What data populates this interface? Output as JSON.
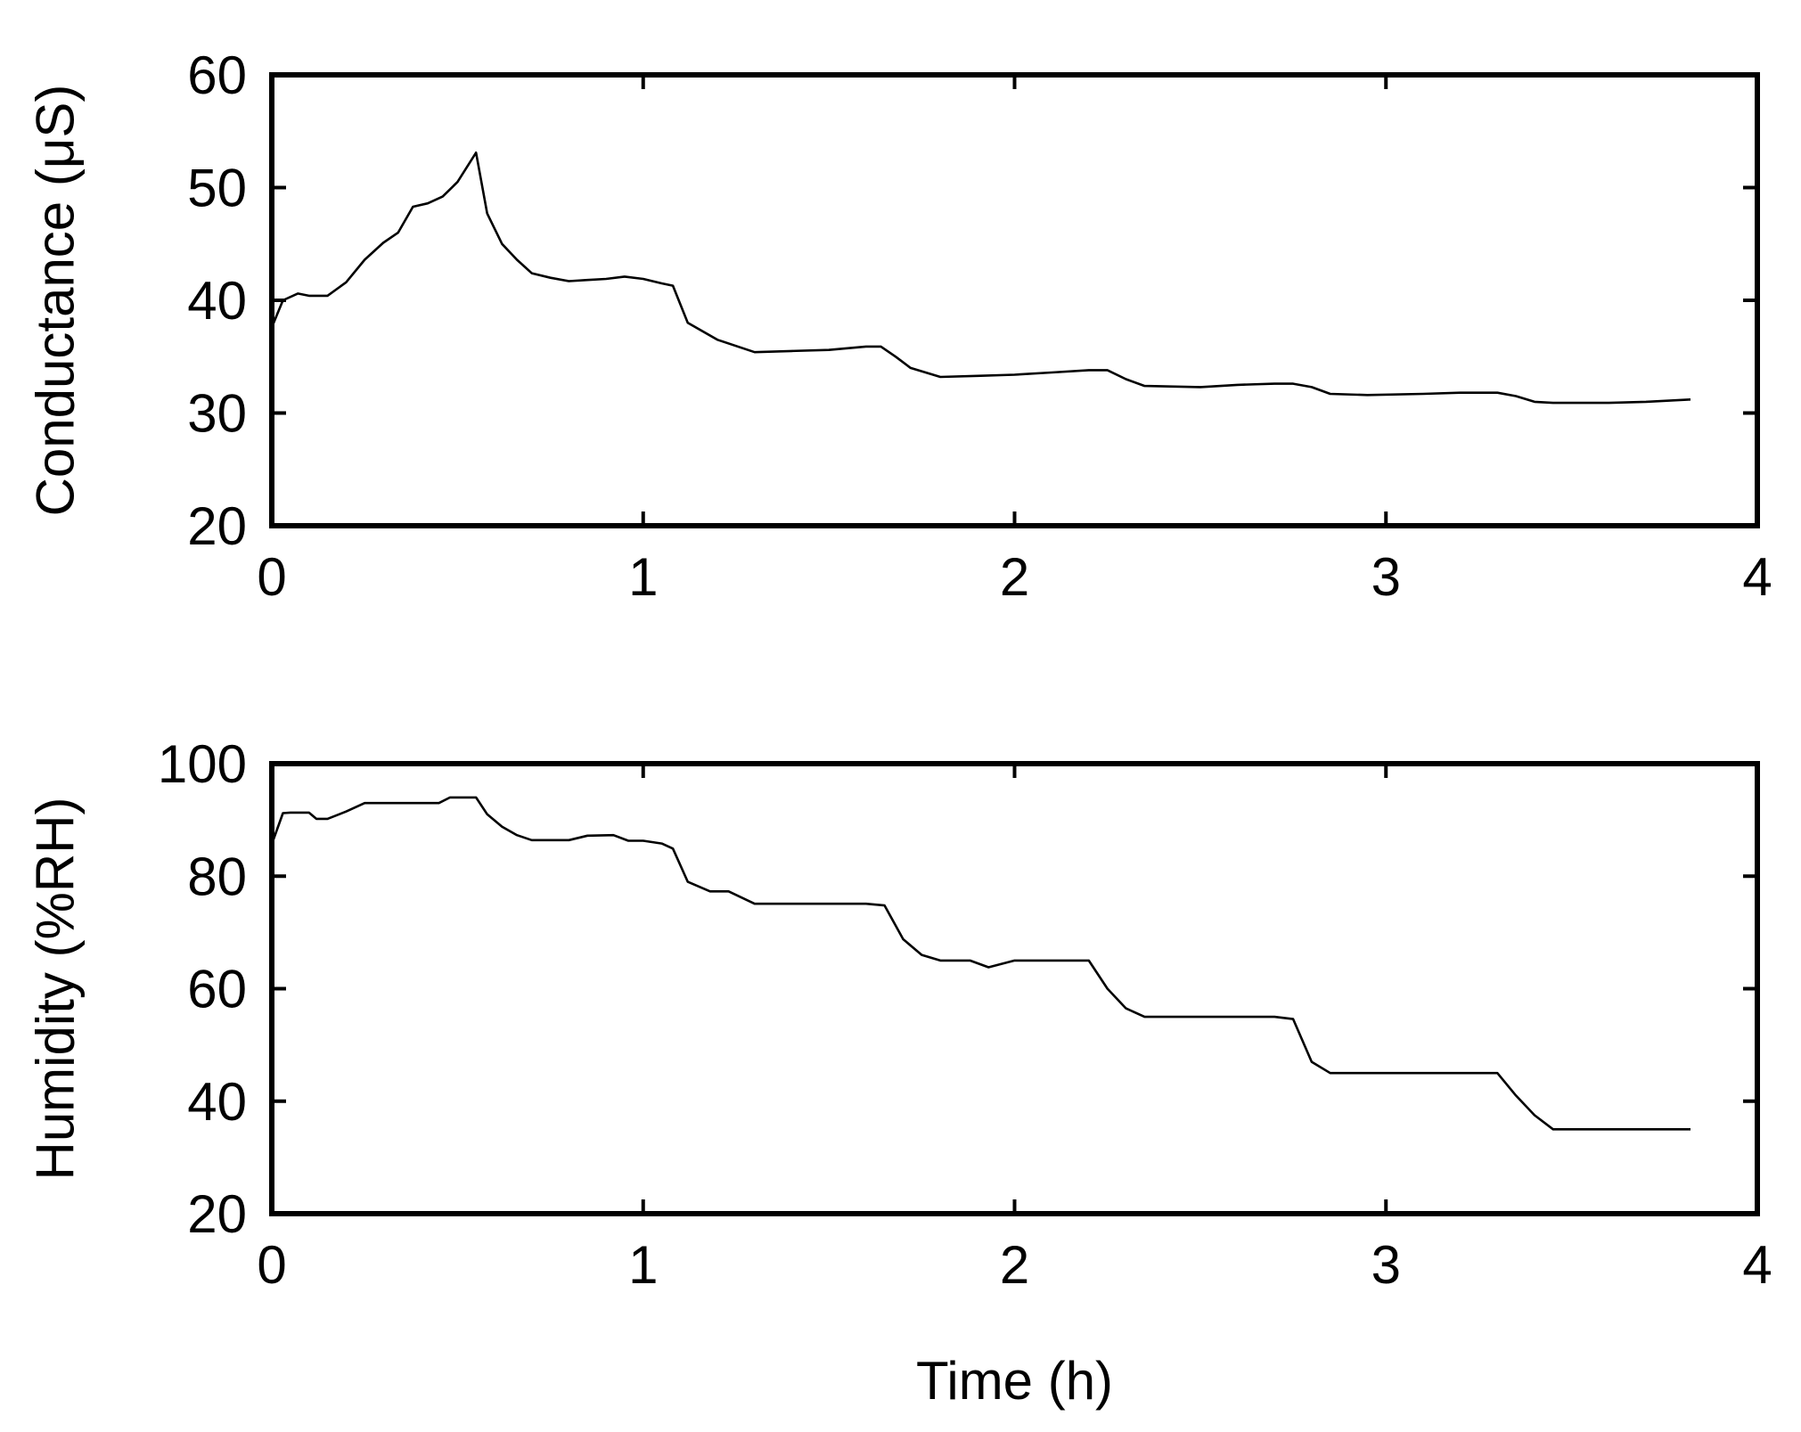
{
  "chart_data": [
    {
      "type": "line",
      "xlabel": "",
      "ylabel": "Conductance (μS)",
      "xlim": [
        0,
        4
      ],
      "ylim": [
        20,
        60
      ],
      "xticks": [
        "0",
        "1",
        "2",
        "3",
        "4"
      ],
      "yticks": [
        "20",
        "30",
        "40",
        "50",
        "60"
      ],
      "grid": false,
      "line_color": "#000000",
      "series": [
        {
          "x": [
            0,
            0.03,
            0.07,
            0.1,
            0.15,
            0.2,
            0.25,
            0.3,
            0.34,
            0.38,
            0.42,
            0.46,
            0.5,
            0.55,
            0.58,
            0.62,
            0.66,
            0.7,
            0.75,
            0.8,
            0.85,
            0.9,
            0.95,
            1.0,
            1.05,
            1.08,
            1.12,
            1.2,
            1.3,
            1.4,
            1.5,
            1.6,
            1.64,
            1.68,
            1.72,
            1.8,
            1.9,
            2.0,
            2.1,
            2.2,
            2.25,
            2.3,
            2.35,
            2.5,
            2.6,
            2.7,
            2.75,
            2.8,
            2.85,
            2.95,
            3.1,
            3.2,
            3.3,
            3.35,
            3.4,
            3.45,
            3.6,
            3.7,
            3.82
          ],
          "values": [
            37.6,
            40.0,
            40.6,
            40.4,
            40.4,
            41.6,
            43.6,
            45.1,
            46.0,
            48.3,
            48.6,
            49.2,
            50.5,
            53.1,
            47.7,
            45.0,
            43.6,
            42.4,
            42.0,
            41.7,
            41.8,
            41.9,
            42.1,
            41.9,
            41.5,
            41.3,
            38.0,
            36.5,
            35.4,
            35.5,
            35.6,
            35.9,
            35.9,
            35.0,
            34.0,
            33.2,
            33.3,
            33.4,
            33.6,
            33.8,
            33.8,
            33.0,
            32.4,
            32.3,
            32.5,
            32.6,
            32.6,
            32.3,
            31.7,
            31.6,
            31.7,
            31.8,
            31.8,
            31.5,
            31.0,
            30.9,
            30.9,
            31.0,
            31.2
          ]
        }
      ]
    },
    {
      "type": "line",
      "xlabel": "Time (h)",
      "ylabel": "Humidity (%RH)",
      "xlim": [
        0,
        4
      ],
      "ylim": [
        20,
        100
      ],
      "xticks": [
        "0",
        "1",
        "2",
        "3",
        "4"
      ],
      "yticks": [
        "20",
        "40",
        "60",
        "80",
        "100"
      ],
      "grid": false,
      "line_color": "#000000",
      "series": [
        {
          "x": [
            0,
            0.03,
            0.05,
            0.1,
            0.12,
            0.15,
            0.2,
            0.25,
            0.3,
            0.4,
            0.45,
            0.48,
            0.55,
            0.58,
            0.62,
            0.66,
            0.7,
            0.8,
            0.85,
            0.92,
            0.96,
            1.0,
            1.05,
            1.08,
            1.12,
            1.18,
            1.23,
            1.3,
            1.4,
            1.5,
            1.6,
            1.65,
            1.7,
            1.75,
            1.8,
            1.88,
            1.93,
            2.0,
            2.1,
            2.2,
            2.25,
            2.3,
            2.35,
            2.5,
            2.6,
            2.7,
            2.75,
            2.8,
            2.85,
            2.95,
            3.1,
            3.2,
            3.3,
            3.35,
            3.4,
            3.45,
            3.6,
            3.7,
            3.82
          ],
          "values": [
            85.7,
            91.2,
            91.3,
            91.3,
            90.2,
            90.2,
            91.5,
            93.0,
            93.0,
            93.0,
            93.0,
            94.0,
            94.0,
            91.0,
            88.8,
            87.3,
            86.4,
            86.4,
            87.2,
            87.3,
            86.3,
            86.3,
            85.8,
            84.9,
            79.0,
            77.3,
            77.3,
            75.1,
            75.1,
            75.1,
            75.1,
            74.8,
            68.8,
            66.0,
            65.0,
            65.0,
            63.8,
            65.0,
            65.0,
            65.0,
            60.0,
            56.5,
            55.0,
            55.0,
            55.0,
            55.0,
            54.6,
            47.0,
            45.0,
            45.0,
            45.0,
            45.0,
            45.0,
            41.0,
            37.5,
            35.0,
            35.0,
            35.0,
            35.0
          ]
        }
      ]
    }
  ]
}
